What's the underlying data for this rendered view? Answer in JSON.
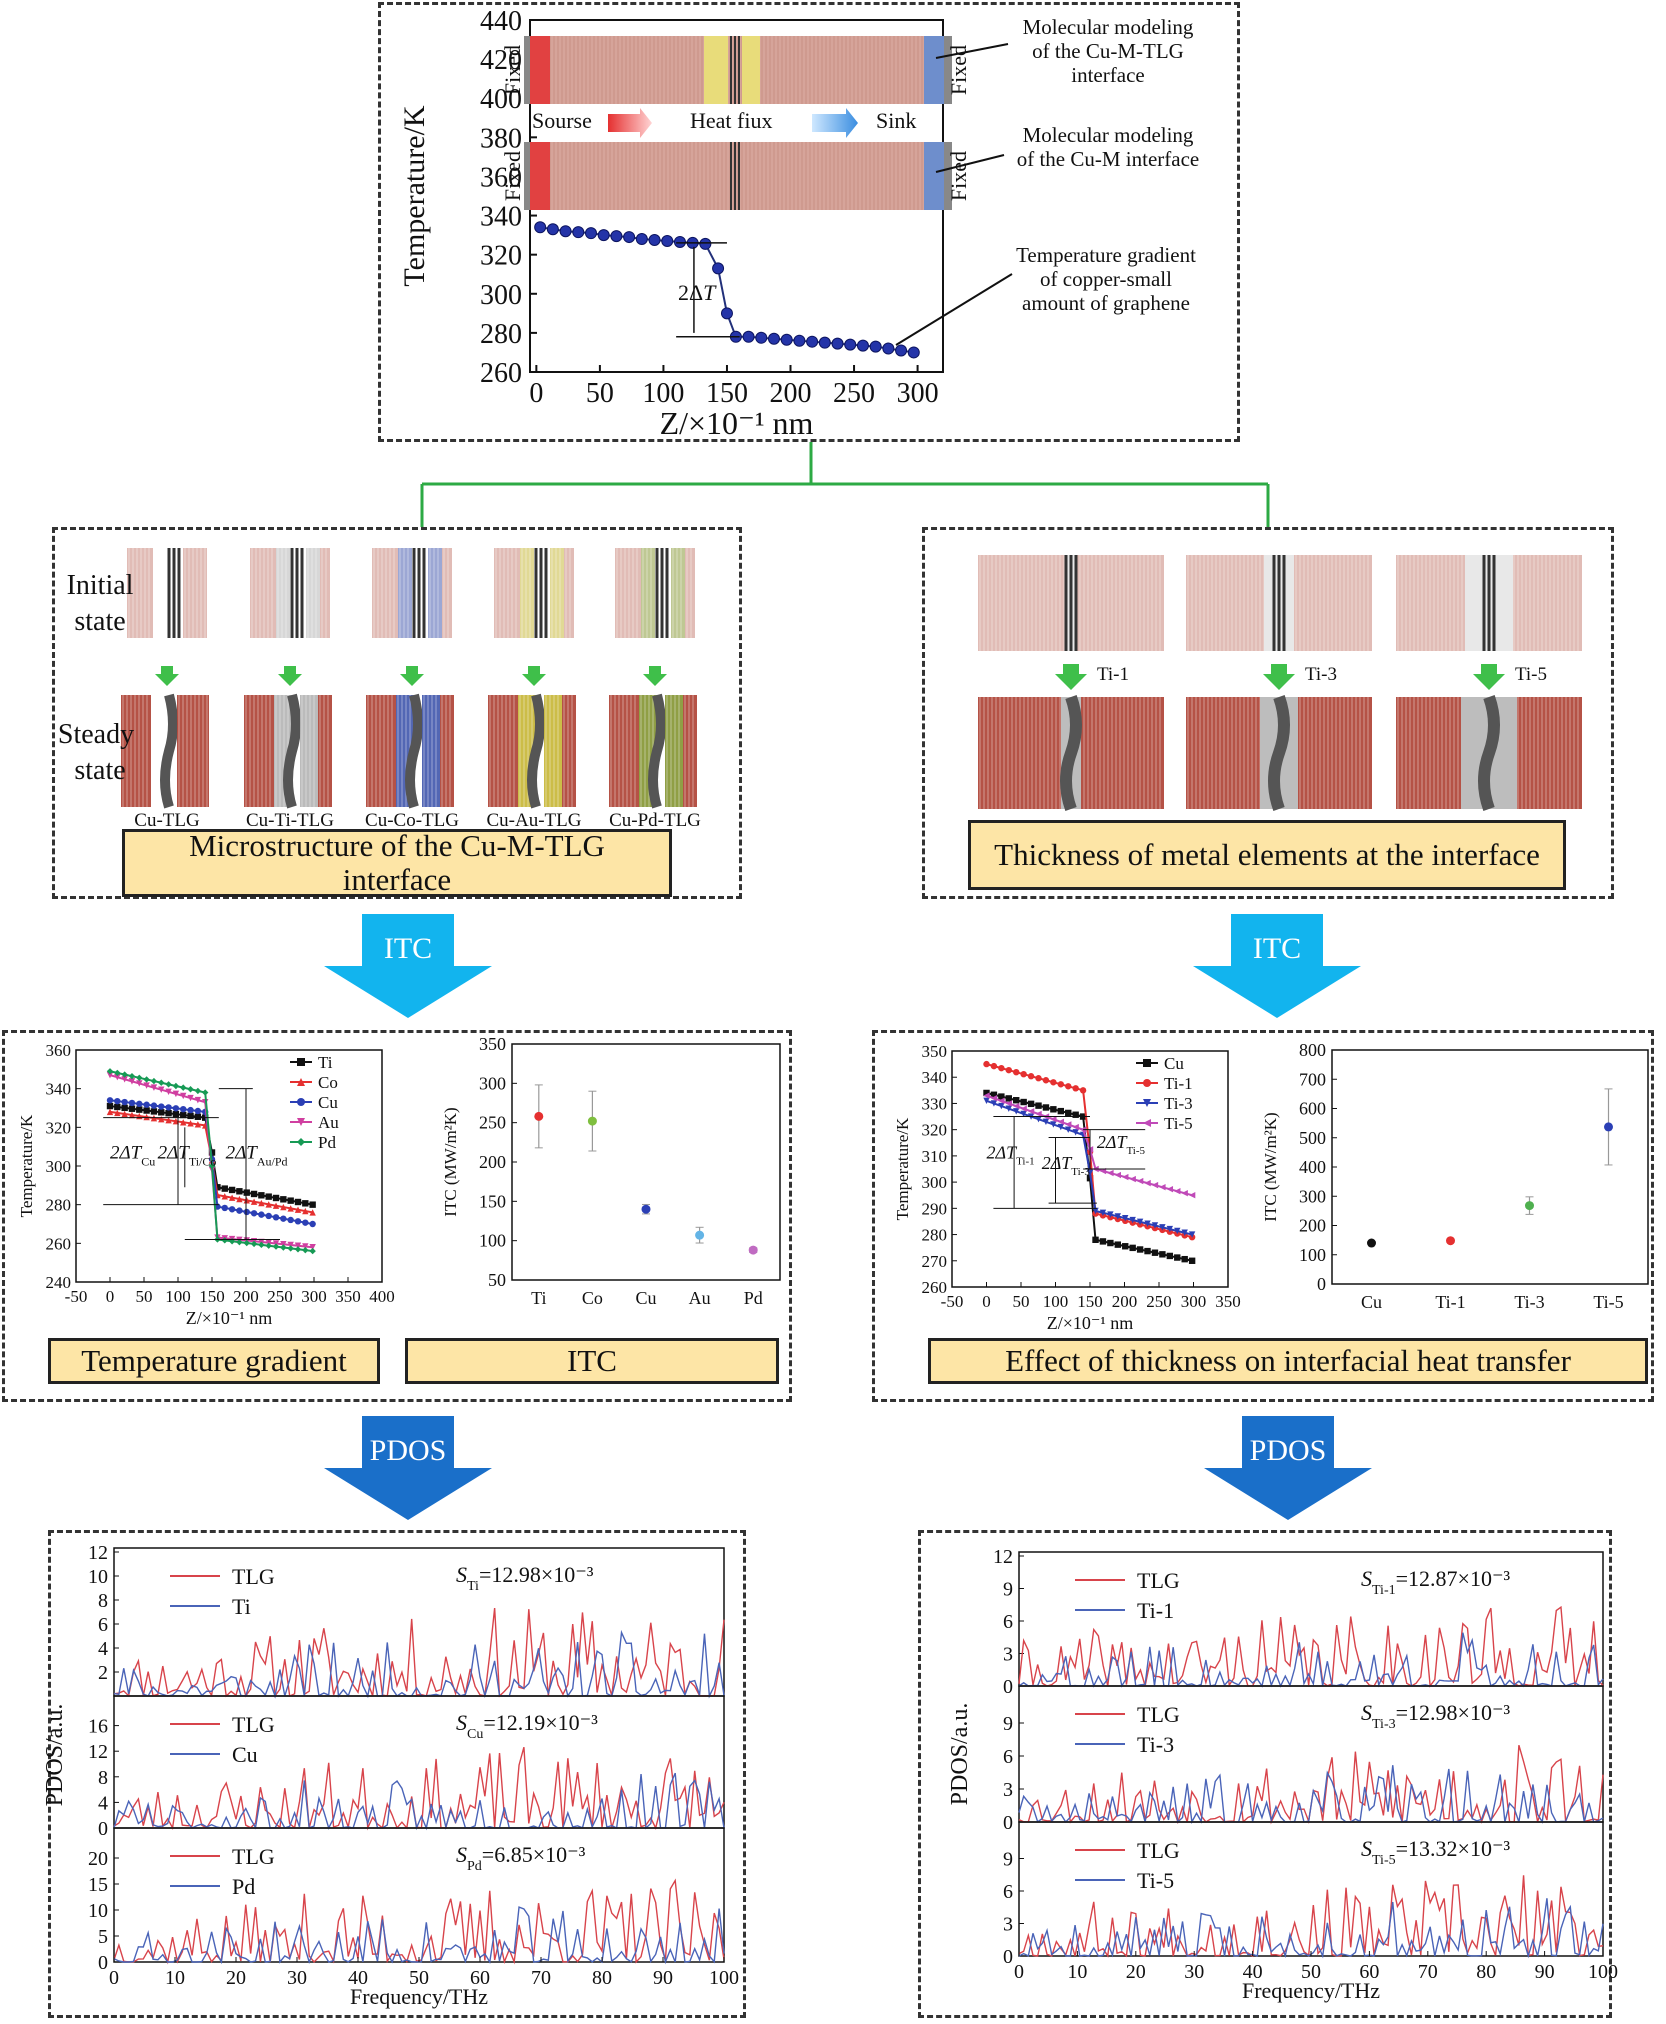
{
  "top": {
    "y_label": "Temperature/K",
    "x_label": "Z/×10⁻¹ nm",
    "y_ticks": [
      260,
      280,
      300,
      320,
      340,
      360,
      380,
      400,
      420,
      440
    ],
    "x_ticks": [
      0,
      50,
      100,
      150,
      200,
      250,
      300
    ],
    "fixed_label": "Fixed",
    "flow": {
      "source": "Sourse",
      "heat": "Heat fiux",
      "sink": "Sink"
    },
    "delta_label": "2ΔT",
    "ann_1": [
      "Molecular modeling",
      "of the Cu-M-TLG",
      "interface"
    ],
    "ann_2": [
      "Molecular modeling",
      "of the Cu-M interface"
    ],
    "ann_3": [
      "Temperature gradient",
      "of copper-small",
      "amount of graphene"
    ],
    "profile": [
      [
        3,
        334
      ],
      [
        13,
        333
      ],
      [
        23,
        332
      ],
      [
        33,
        331.5
      ],
      [
        43,
        331
      ],
      [
        53,
        330
      ],
      [
        63,
        329.5
      ],
      [
        73,
        329
      ],
      [
        83,
        328
      ],
      [
        93,
        327.5
      ],
      [
        103,
        327
      ],
      [
        113,
        326.5
      ],
      [
        123,
        326
      ],
      [
        133,
        325.5
      ],
      [
        143,
        313
      ],
      [
        150,
        290
      ],
      [
        157,
        278
      ],
      [
        167,
        278
      ],
      [
        177,
        277.5
      ],
      [
        187,
        277
      ],
      [
        197,
        276.5
      ],
      [
        207,
        276
      ],
      [
        217,
        275.5
      ],
      [
        227,
        275
      ],
      [
        237,
        274.5
      ],
      [
        247,
        274
      ],
      [
        257,
        273.5
      ],
      [
        267,
        273
      ],
      [
        277,
        272
      ],
      [
        287,
        271
      ],
      [
        297,
        270
      ]
    ]
  },
  "left_struct": {
    "row_labels": {
      "initial": [
        "Initial",
        "state"
      ],
      "steady": [
        "Steady",
        "state"
      ]
    },
    "labels": [
      "Cu-TLG",
      "Cu-Ti-TLG",
      "Cu-Co-TLG",
      "Cu-Au-TLG",
      "Cu-Pd-TLG"
    ],
    "title": "Microstructure of the Cu-M-TLG interface"
  },
  "right_struct": {
    "labels": [
      "Ti-1",
      "Ti-3",
      "Ti-5"
    ],
    "title": "Thickness of metal elements at the interface"
  },
  "arrows": {
    "itc": "ITC",
    "pdos": "PDOS"
  },
  "colors": {
    "cu": "#c8857a",
    "graphene": "#444444",
    "ti": "#b7b7b7",
    "co": "#4a5fb0",
    "au": "#c9b93e",
    "pd": "#8a9a3b",
    "arrow_light": "#12b4ee",
    "arrow_dark": "#1a6fc9",
    "box": "#fde5a6",
    "tree": "#2daa44"
  },
  "chart_data": [
    {
      "type": "line",
      "title": "Temperature gradient",
      "xlabel": "Z/×10⁻¹ nm",
      "ylabel": "Temperature/K",
      "xlim": [
        -50,
        400
      ],
      "ylim": [
        240,
        360
      ],
      "x_ticks": [
        -50,
        0,
        50,
        100,
        150,
        200,
        250,
        300,
        350,
        400
      ],
      "y_ticks": [
        240,
        260,
        280,
        300,
        320,
        340,
        360
      ],
      "series": [
        {
          "name": "Ti",
          "color": "#111111",
          "marker": "square",
          "left": [
            331,
            325
          ],
          "right": [
            289,
            280
          ]
        },
        {
          "name": "Co",
          "color": "#e53030",
          "marker": "triangle",
          "left": [
            328,
            321
          ],
          "right": [
            285,
            276
          ]
        },
        {
          "name": "Cu",
          "color": "#2b3fb5",
          "marker": "circle",
          "left": [
            334,
            328
          ],
          "right": [
            279,
            270
          ]
        },
        {
          "name": "Au",
          "color": "#d03fa0",
          "marker": "triangle-down",
          "left": [
            347,
            333
          ],
          "right": [
            263,
            258
          ]
        },
        {
          "name": "Pd",
          "color": "#179a55",
          "marker": "diamond",
          "left": [
            349,
            338
          ],
          "right": [
            262,
            256
          ]
        }
      ],
      "annotations": [
        {
          "base": "2ΔT",
          "sub": "Cu"
        },
        {
          "base": "2ΔT",
          "sub": "Ti/Co"
        },
        {
          "base": "2ΔT",
          "sub": "Au/Pd"
        }
      ]
    },
    {
      "type": "scatter",
      "title": "ITC",
      "ylabel": "ITC (MW/m²K)",
      "categories": [
        "Ti",
        "Co",
        "Cu",
        "Au",
        "Pd"
      ],
      "values": [
        258,
        252,
        140,
        107,
        88
      ],
      "errors": [
        40,
        38,
        6,
        10,
        3
      ],
      "colors": [
        "#e53030",
        "#7fbf3f",
        "#2b3fb5",
        "#63b4e6",
        "#c06bc2"
      ],
      "ylim": [
        50,
        350
      ],
      "y_ticks": [
        50,
        100,
        150,
        200,
        250,
        300,
        350
      ]
    },
    {
      "type": "line",
      "title": "Effect of thickness on interfacial heat transfer",
      "xlabel": "Z/×10⁻¹ nm",
      "ylabel": "Temperature/K",
      "xlim": [
        -50,
        350
      ],
      "ylim": [
        260,
        350
      ],
      "x_ticks": [
        -50,
        0,
        50,
        100,
        150,
        200,
        250,
        300,
        350
      ],
      "y_ticks": [
        260,
        270,
        280,
        290,
        300,
        310,
        320,
        330,
        340,
        350
      ],
      "series": [
        {
          "name": "Cu",
          "color": "#111111",
          "marker": "square",
          "left": [
            334,
            325
          ],
          "right": [
            278,
            270
          ]
        },
        {
          "name": "Ti-1",
          "color": "#e53030",
          "marker": "circle",
          "left": [
            345,
            335
          ],
          "right": [
            288,
            279
          ]
        },
        {
          "name": "Ti-3",
          "color": "#2b3fb5",
          "marker": "triangle-down",
          "left": [
            331,
            318
          ],
          "right": [
            289,
            280
          ]
        },
        {
          "name": "Ti-5",
          "color": "#c04ab8",
          "marker": "triangle-left",
          "left": [
            333,
            320
          ],
          "right": [
            305,
            295
          ]
        }
      ],
      "annotations": [
        {
          "base": "2ΔT",
          "sub": "Ti-1"
        },
        {
          "base": "2ΔT",
          "sub": "Ti-3"
        },
        {
          "base": "2ΔT",
          "sub": "Ti-5"
        }
      ]
    },
    {
      "type": "scatter",
      "ylabel": "ITC (MW/m²K)",
      "categories": [
        "Cu",
        "Ti-1",
        "Ti-3",
        "Ti-5"
      ],
      "values": [
        140,
        148,
        268,
        537
      ],
      "errors": [
        5,
        6,
        30,
        130
      ],
      "colors": [
        "#111111",
        "#e53030",
        "#4fb04f",
        "#2b3fb5"
      ],
      "ylim": [
        0,
        800
      ],
      "y_ticks": [
        0,
        100,
        200,
        300,
        400,
        500,
        600,
        700,
        800
      ]
    },
    {
      "type": "line",
      "title": "PDOS",
      "xlabel": "Frequency/THz",
      "ylabel": "PDOS/a.u.",
      "x_ticks": [
        0,
        10,
        20,
        30,
        40,
        50,
        60,
        70,
        80,
        90,
        100
      ],
      "panels": [
        {
          "ref": "TLG",
          "cmp": "Ti",
          "s_sub": "Ti",
          "s_value": "=12.98×10⁻³",
          "ylim": [
            0,
            12
          ],
          "y_ticks": [
            2,
            4,
            6,
            8,
            10,
            12
          ],
          "seed": 11
        },
        {
          "ref": "TLG",
          "cmp": "Cu",
          "s_sub": "Cu",
          "s_value": "=12.19×10⁻³",
          "ylim": [
            0,
            20
          ],
          "y_ticks": [
            0,
            4,
            8,
            12,
            16
          ],
          "seed": 23
        },
        {
          "ref": "TLG",
          "cmp": "Pd",
          "s_sub": "Pd",
          "s_value": "=6.85×10⁻³",
          "ylim": [
            0,
            25
          ],
          "y_ticks": [
            0,
            5,
            10,
            15,
            20
          ],
          "seed": 37
        }
      ]
    },
    {
      "type": "line",
      "title": "PDOS",
      "xlabel": "Frequency/THz",
      "ylabel": "PDOS/a.u.",
      "x_ticks": [
        0,
        10,
        20,
        30,
        40,
        50,
        60,
        70,
        80,
        90,
        100
      ],
      "panels": [
        {
          "ref": "TLG",
          "cmp": "Ti-1",
          "s_sub": "Ti-1",
          "s_value": "=12.87×10⁻³",
          "ylim": [
            0,
            12
          ],
          "y_ticks": [
            0,
            3,
            6,
            9,
            12
          ],
          "seed": 41
        },
        {
          "ref": "TLG",
          "cmp": "Ti-3",
          "s_sub": "Ti-3",
          "s_value": "=12.98×10⁻³",
          "ylim": [
            0,
            12
          ],
          "y_ticks": [
            0,
            3,
            6,
            9
          ],
          "seed": 53
        },
        {
          "ref": "TLG",
          "cmp": "Ti-5",
          "s_sub": "Ti-5",
          "s_value": "=13.32×10⁻³",
          "ylim": [
            0,
            12
          ],
          "y_ticks": [
            0,
            3,
            6,
            9
          ],
          "seed": 67
        }
      ]
    }
  ]
}
